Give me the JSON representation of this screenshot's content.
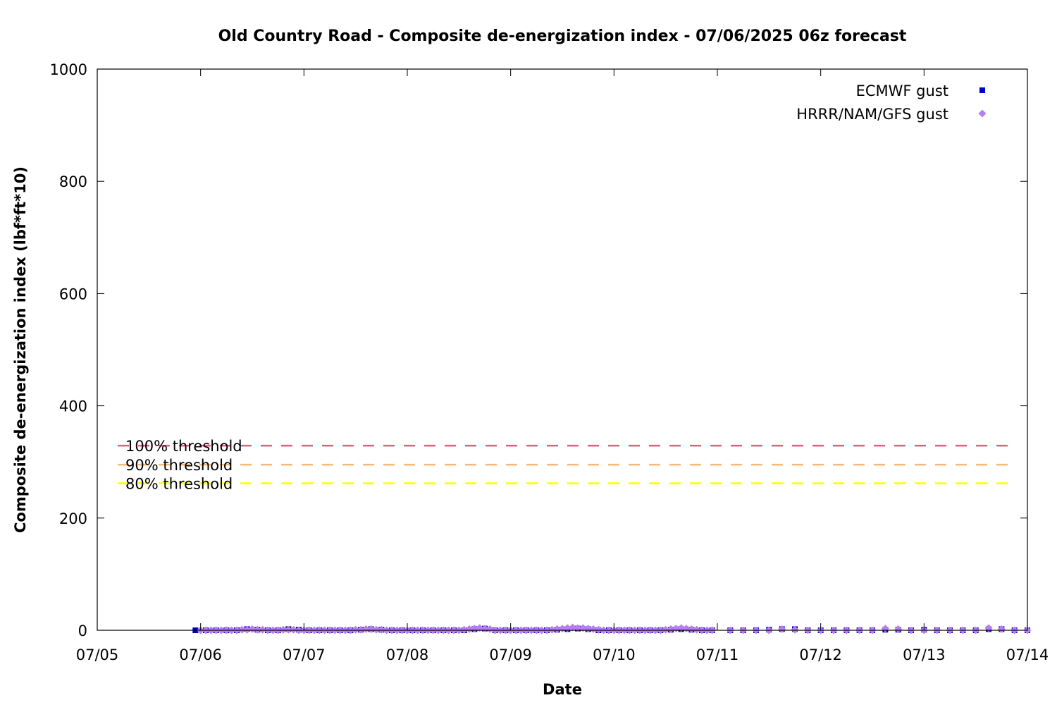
{
  "chart_data": {
    "type": "scatter",
    "title": "Old Country Road - Composite de-energization index - 07/06/2025 06z forecast",
    "xlabel": "Date",
    "ylabel": "Composite de-energization index (lbf*ft*10)",
    "x_ticks": [
      "07/05",
      "07/06",
      "07/07",
      "07/08",
      "07/09",
      "07/10",
      "07/11",
      "07/12",
      "07/13",
      "07/14"
    ],
    "x_range_days": [
      0,
      9
    ],
    "y_ticks": [
      "0",
      "200",
      "400",
      "600",
      "800",
      "1000"
    ],
    "ylim": [
      0,
      1000
    ],
    "grid": false,
    "legend_position": "top-right",
    "thresholds": [
      {
        "label": "100% threshold",
        "value": 329,
        "color": "#e0607a"
      },
      {
        "label": "90% threshold",
        "value": 295,
        "color": "#f6b97a"
      },
      {
        "label": "80% threshold",
        "value": 262,
        "color": "#ffff00"
      }
    ],
    "series": [
      {
        "name": "ECMWF gust",
        "marker": "square",
        "color": "#0000cc",
        "points": [
          [
            0.95,
            0
          ],
          [
            1.05,
            0
          ],
          [
            1.15,
            0
          ],
          [
            1.25,
            0
          ],
          [
            1.35,
            0
          ],
          [
            1.45,
            2
          ],
          [
            1.55,
            1
          ],
          [
            1.65,
            0
          ],
          [
            1.75,
            0
          ],
          [
            1.85,
            2
          ],
          [
            1.95,
            1
          ],
          [
            2.05,
            0
          ],
          [
            2.15,
            0
          ],
          [
            2.25,
            0
          ],
          [
            2.35,
            0
          ],
          [
            2.45,
            0
          ],
          [
            2.55,
            1
          ],
          [
            2.65,
            2
          ],
          [
            2.75,
            1
          ],
          [
            2.85,
            0
          ],
          [
            2.95,
            0
          ],
          [
            3.05,
            0
          ],
          [
            3.15,
            0
          ],
          [
            3.25,
            0
          ],
          [
            3.35,
            0
          ],
          [
            3.45,
            0
          ],
          [
            3.55,
            0
          ],
          [
            3.65,
            2
          ],
          [
            3.75,
            3
          ],
          [
            3.85,
            0
          ],
          [
            3.95,
            0
          ],
          [
            4.05,
            0
          ],
          [
            4.15,
            0
          ],
          [
            4.25,
            0
          ],
          [
            4.35,
            0
          ],
          [
            4.45,
            1
          ],
          [
            4.55,
            2
          ],
          [
            4.65,
            3
          ],
          [
            4.75,
            2
          ],
          [
            4.85,
            0
          ],
          [
            4.95,
            0
          ],
          [
            5.05,
            0
          ],
          [
            5.15,
            0
          ],
          [
            5.25,
            0
          ],
          [
            5.35,
            0
          ],
          [
            5.45,
            0
          ],
          [
            5.55,
            1
          ],
          [
            5.65,
            2
          ],
          [
            5.75,
            1
          ],
          [
            5.85,
            0
          ],
          [
            5.95,
            0
          ],
          [
            6.125,
            0
          ],
          [
            6.25,
            0
          ],
          [
            6.375,
            0
          ],
          [
            6.5,
            1
          ],
          [
            6.625,
            2
          ],
          [
            6.75,
            2
          ],
          [
            6.875,
            0
          ],
          [
            7.0,
            0
          ],
          [
            7.125,
            0
          ],
          [
            7.25,
            0
          ],
          [
            7.375,
            0
          ],
          [
            7.5,
            0
          ],
          [
            7.625,
            1
          ],
          [
            7.75,
            1
          ],
          [
            7.875,
            0
          ],
          [
            8.0,
            1
          ],
          [
            8.125,
            0
          ],
          [
            8.25,
            0
          ],
          [
            8.375,
            0
          ],
          [
            8.5,
            0
          ],
          [
            8.625,
            2
          ],
          [
            8.75,
            2
          ],
          [
            8.875,
            0
          ],
          [
            9.0,
            0
          ]
        ]
      },
      {
        "name": "HRRR/NAM/GFS gust",
        "marker": "diamond",
        "color": "#b87ef0",
        "points": [
          [
            1.0,
            0
          ],
          [
            1.05,
            0
          ],
          [
            1.1,
            0
          ],
          [
            1.15,
            0
          ],
          [
            1.2,
            0
          ],
          [
            1.25,
            0
          ],
          [
            1.3,
            0
          ],
          [
            1.35,
            0
          ],
          [
            1.4,
            1
          ],
          [
            1.45,
            1
          ],
          [
            1.5,
            2
          ],
          [
            1.55,
            1
          ],
          [
            1.6,
            1
          ],
          [
            1.65,
            0
          ],
          [
            1.7,
            0
          ],
          [
            1.75,
            0
          ],
          [
            1.8,
            1
          ],
          [
            1.85,
            1
          ],
          [
            1.9,
            1
          ],
          [
            1.95,
            0
          ],
          [
            2.0,
            0
          ],
          [
            2.05,
            0
          ],
          [
            2.1,
            0
          ],
          [
            2.15,
            0
          ],
          [
            2.2,
            0
          ],
          [
            2.25,
            0
          ],
          [
            2.3,
            0
          ],
          [
            2.35,
            0
          ],
          [
            2.4,
            0
          ],
          [
            2.45,
            0
          ],
          [
            2.5,
            1
          ],
          [
            2.55,
            1
          ],
          [
            2.6,
            2
          ],
          [
            2.65,
            2
          ],
          [
            2.7,
            1
          ],
          [
            2.75,
            1
          ],
          [
            2.8,
            0
          ],
          [
            2.85,
            0
          ],
          [
            2.9,
            0
          ],
          [
            2.95,
            0
          ],
          [
            3.0,
            0
          ],
          [
            3.05,
            0
          ],
          [
            3.1,
            0
          ],
          [
            3.15,
            0
          ],
          [
            3.2,
            0
          ],
          [
            3.25,
            0
          ],
          [
            3.3,
            0
          ],
          [
            3.35,
            0
          ],
          [
            3.4,
            0
          ],
          [
            3.45,
            0
          ],
          [
            3.5,
            0
          ],
          [
            3.55,
            1
          ],
          [
            3.6,
            2
          ],
          [
            3.65,
            3
          ],
          [
            3.7,
            4
          ],
          [
            3.75,
            3
          ],
          [
            3.8,
            2
          ],
          [
            3.85,
            0
          ],
          [
            3.9,
            0
          ],
          [
            3.95,
            0
          ],
          [
            4.0,
            0
          ],
          [
            4.05,
            0
          ],
          [
            4.1,
            0
          ],
          [
            4.15,
            0
          ],
          [
            4.2,
            0
          ],
          [
            4.25,
            0
          ],
          [
            4.3,
            0
          ],
          [
            4.35,
            0
          ],
          [
            4.4,
            1
          ],
          [
            4.45,
            2
          ],
          [
            4.5,
            3
          ],
          [
            4.55,
            4
          ],
          [
            4.6,
            5
          ],
          [
            4.65,
            4
          ],
          [
            4.7,
            4
          ],
          [
            4.75,
            3
          ],
          [
            4.8,
            2
          ],
          [
            4.85,
            1
          ],
          [
            4.9,
            0
          ],
          [
            4.95,
            0
          ],
          [
            5.0,
            0
          ],
          [
            5.05,
            0
          ],
          [
            5.1,
            0
          ],
          [
            5.15,
            0
          ],
          [
            5.2,
            0
          ],
          [
            5.25,
            0
          ],
          [
            5.3,
            0
          ],
          [
            5.35,
            0
          ],
          [
            5.4,
            0
          ],
          [
            5.45,
            0
          ],
          [
            5.5,
            1
          ],
          [
            5.55,
            2
          ],
          [
            5.6,
            3
          ],
          [
            5.65,
            4
          ],
          [
            5.7,
            3
          ],
          [
            5.75,
            2
          ],
          [
            5.8,
            1
          ],
          [
            5.85,
            0
          ],
          [
            5.9,
            0
          ],
          [
            5.95,
            0
          ],
          [
            6.125,
            0
          ],
          [
            6.25,
            0
          ],
          [
            6.375,
            0
          ],
          [
            6.5,
            0
          ],
          [
            6.625,
            2
          ],
          [
            6.75,
            1
          ],
          [
            6.875,
            0
          ],
          [
            7.0,
            0
          ],
          [
            7.125,
            0
          ],
          [
            7.25,
            0
          ],
          [
            7.375,
            0
          ],
          [
            7.5,
            0
          ],
          [
            7.625,
            3
          ],
          [
            7.75,
            2
          ],
          [
            7.875,
            0
          ],
          [
            8.0,
            0
          ],
          [
            8.125,
            0
          ],
          [
            8.25,
            0
          ],
          [
            8.375,
            0
          ],
          [
            8.5,
            0
          ],
          [
            8.625,
            4
          ],
          [
            8.75,
            2
          ],
          [
            8.875,
            0
          ],
          [
            9.0,
            0
          ]
        ]
      }
    ]
  }
}
